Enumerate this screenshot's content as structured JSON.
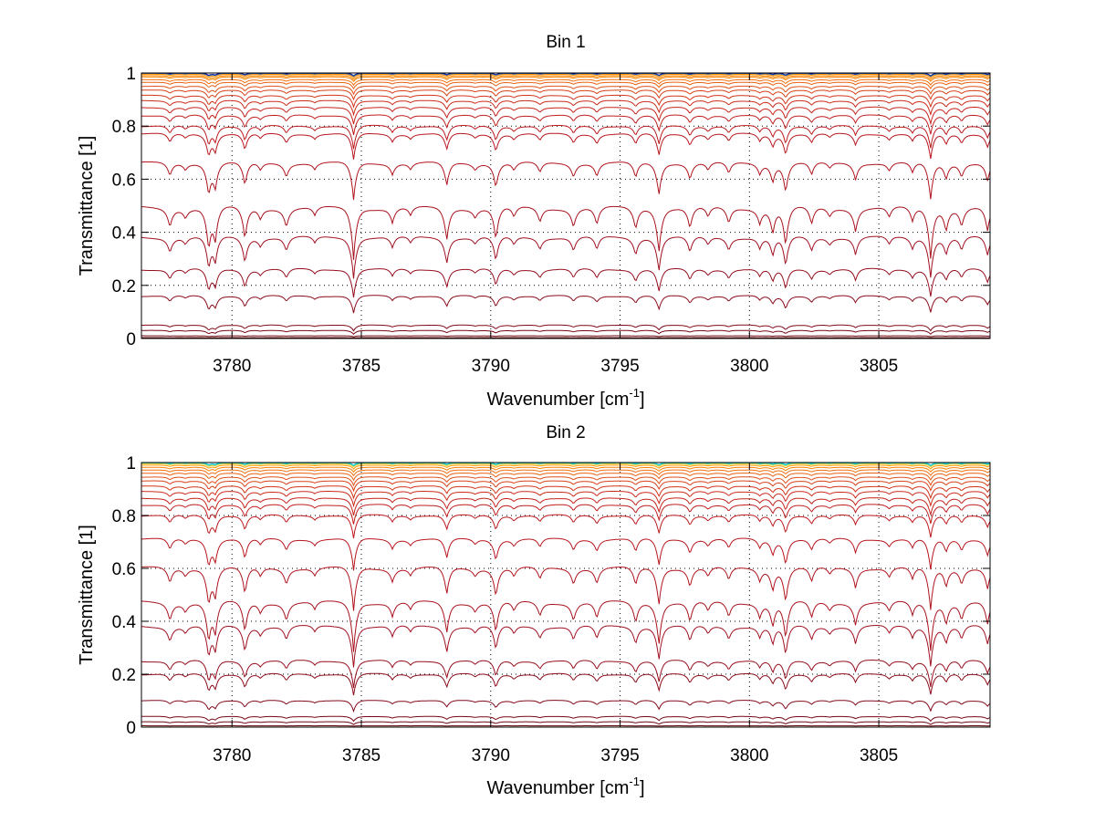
{
  "chart_data": [
    {
      "type": "line",
      "title": "Bin 1",
      "xlabel": "Wavenumber [cm",
      "xlabel_sup": "-1",
      "xlabel_end": "]",
      "ylabel": "Transmittance [1]",
      "xlim": [
        3776.5,
        3809.3
      ],
      "ylim": [
        0,
        1
      ],
      "grid": true,
      "x_ticks": [
        3780,
        3785,
        3790,
        3795,
        3800,
        3805
      ],
      "x_tick_labels": [
        "3780",
        "3785",
        "3790",
        "3795",
        "3800",
        "3805"
      ],
      "y_ticks": [
        0,
        0.2,
        0.4,
        0.6,
        0.8,
        1
      ],
      "y_tick_labels": [
        "0",
        "0.2",
        "0.4",
        "0.6",
        "0.8",
        "1"
      ],
      "series_levels": [
        1.0,
        0.998,
        0.995,
        0.99,
        0.985,
        0.975,
        0.965,
        0.95,
        0.935,
        0.915,
        0.895,
        0.87,
        0.84,
        0.8,
        0.77,
        0.66,
        0.49,
        0.38,
        0.26,
        0.16,
        0.05,
        0.03,
        0.01,
        0.003
      ],
      "series_colors": [
        "#00008f",
        "#1f5fbf",
        "#ff9000",
        "#ff8a00",
        "#f98000",
        "#f07010",
        "#ea6010",
        "#e05018",
        "#d84018",
        "#d23418",
        "#cc2c1c",
        "#c6241c",
        "#c01e1e",
        "#bc1a1e",
        "#b8161e",
        "#b0141e",
        "#a8121e",
        "#a01020",
        "#960e1e",
        "#8c0c1c",
        "#820a1a",
        "#780818",
        "#6e0616",
        "#600000"
      ]
    },
    {
      "type": "line",
      "title": "Bin 2",
      "xlabel": "Wavenumber [cm",
      "xlabel_sup": "-1",
      "xlabel_end": "]",
      "ylabel": "Transmittance [1]",
      "xlim": [
        3776.5,
        3809.3
      ],
      "ylim": [
        0,
        1
      ],
      "grid": true,
      "x_ticks": [
        3780,
        3785,
        3790,
        3795,
        3800,
        3805
      ],
      "x_tick_labels": [
        "3780",
        "3785",
        "3790",
        "3795",
        "3800",
        "3805"
      ],
      "y_ticks": [
        0,
        0.2,
        0.4,
        0.6,
        0.8,
        1
      ],
      "y_tick_labels": [
        "0",
        "0.2",
        "0.4",
        "0.6",
        "0.8",
        "1"
      ],
      "series_levels": [
        1.0,
        0.998,
        0.995,
        0.99,
        0.982,
        0.972,
        0.96,
        0.945,
        0.93,
        0.91,
        0.89,
        0.865,
        0.84,
        0.8,
        0.71,
        0.6,
        0.47,
        0.38,
        0.25,
        0.2,
        0.1,
        0.04,
        0.02,
        0.005
      ],
      "series_colors": [
        "#00c8e8",
        "#20d0c0",
        "#e8d040",
        "#ff9a00",
        "#f98000",
        "#f07010",
        "#ea6010",
        "#e05018",
        "#d84018",
        "#d23418",
        "#cc2c1c",
        "#c6241c",
        "#c01e1e",
        "#bc1a1e",
        "#b8161e",
        "#b0141e",
        "#a8121e",
        "#a01020",
        "#960e1e",
        "#8c0c1c",
        "#820a1a",
        "#780818",
        "#6e0616",
        "#600000"
      ]
    }
  ],
  "absorption_lines": {
    "centers": [
      3777.6,
      3778.2,
      3779.1,
      3779.35,
      3780.5,
      3781.1,
      3782.1,
      3783.2,
      3784.7,
      3786.2,
      3786.9,
      3788.3,
      3789.4,
      3790.2,
      3790.9,
      3791.9,
      3793.2,
      3794.1,
      3795.6,
      3796.5,
      3797.7,
      3798.4,
      3799.2,
      3800.4,
      3800.9,
      3801.4,
      3802.4,
      3803.1,
      3804.1,
      3805.4,
      3806.3,
      3807.0,
      3807.6,
      3808.2,
      3809.2
    ],
    "strengths": [
      0.25,
      0.12,
      0.55,
      0.45,
      0.45,
      0.15,
      0.25,
      0.12,
      0.7,
      0.2,
      0.12,
      0.45,
      0.12,
      0.45,
      0.15,
      0.2,
      0.25,
      0.25,
      0.3,
      0.6,
      0.3,
      0.15,
      0.22,
      0.2,
      0.35,
      0.55,
      0.25,
      0.12,
      0.3,
      0.15,
      0.2,
      0.7,
      0.3,
      0.25,
      0.35
    ]
  }
}
